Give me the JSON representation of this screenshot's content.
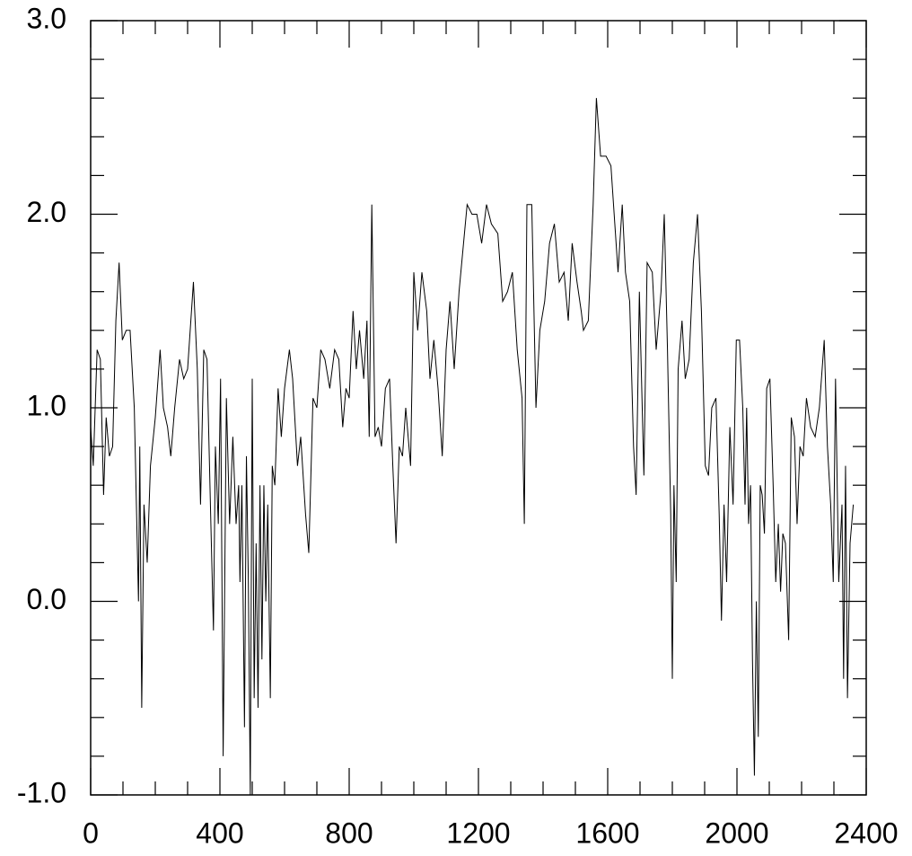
{
  "chart_data": {
    "type": "line",
    "x": [
      0,
      8,
      20,
      30,
      40,
      48,
      58,
      68,
      78,
      88,
      98,
      110,
      122,
      135,
      148,
      152,
      158,
      165,
      175,
      185,
      200,
      215,
      225,
      238,
      248,
      260,
      275,
      288,
      300,
      318,
      330,
      340,
      350,
      360,
      372,
      380,
      386,
      395,
      402,
      410,
      420,
      430,
      440,
      450,
      458,
      462,
      468,
      476,
      482,
      488,
      494,
      500,
      506,
      512,
      518,
      524,
      530,
      536,
      542,
      548,
      556,
      562,
      570,
      580,
      590,
      600,
      615,
      625,
      640,
      650,
      665,
      675,
      688,
      700,
      712,
      725,
      740,
      755,
      768,
      780,
      790,
      800,
      812,
      822,
      832,
      845,
      855,
      862,
      870,
      880,
      890,
      900,
      912,
      925,
      935,
      945,
      955,
      965,
      975,
      990,
      1000,
      1012,
      1025,
      1040,
      1050,
      1062,
      1075,
      1088,
      1100,
      1112,
      1125,
      1140,
      1165,
      1180,
      1195,
      1210,
      1225,
      1240,
      1260,
      1275,
      1290,
      1305,
      1320,
      1335,
      1342,
      1350,
      1365,
      1378,
      1390,
      1405,
      1420,
      1435,
      1450,
      1465,
      1478,
      1490,
      1505,
      1518,
      1525,
      1540,
      1555,
      1565,
      1578,
      1595,
      1610,
      1622,
      1632,
      1645,
      1655,
      1668,
      1680,
      1688,
      1698,
      1712,
      1722,
      1738,
      1750,
      1765,
      1775,
      1785,
      1795,
      1800,
      1805,
      1812,
      1818,
      1830,
      1840,
      1852,
      1865,
      1878,
      1890,
      1902,
      1912,
      1922,
      1935,
      1945,
      1952,
      1960,
      1968,
      1978,
      1988,
      1998,
      2008,
      2018,
      2025,
      2030,
      2036,
      2042,
      2048,
      2054,
      2060,
      2066,
      2072,
      2078,
      2085,
      2092,
      2102,
      2112,
      2120,
      2128,
      2135,
      2142,
      2150,
      2160,
      2168,
      2178,
      2186,
      2195,
      2205,
      2215,
      2228,
      2242,
      2255,
      2270,
      2280,
      2290,
      2298,
      2305,
      2315,
      2325,
      2330,
      2336,
      2342,
      2350,
      2360
    ],
    "values": [
      0.9,
      0.7,
      1.3,
      1.25,
      0.55,
      0.95,
      0.75,
      0.8,
      1.45,
      1.75,
      1.35,
      1.4,
      1.4,
      1.0,
      0.0,
      0.8,
      -0.55,
      0.5,
      0.2,
      0.7,
      0.95,
      1.3,
      1.0,
      0.9,
      0.75,
      1.0,
      1.25,
      1.15,
      1.2,
      1.65,
      1.2,
      0.5,
      1.3,
      1.25,
      0.4,
      -0.15,
      0.8,
      0.4,
      1.15,
      -0.8,
      1.05,
      0.4,
      0.85,
      0.4,
      0.6,
      0.1,
      0.6,
      -0.65,
      0.75,
      0.1,
      -1.0,
      1.15,
      -0.5,
      0.3,
      -0.55,
      0.6,
      -0.3,
      0.6,
      0.0,
      0.5,
      -0.5,
      0.7,
      0.6,
      1.1,
      0.85,
      1.1,
      1.3,
      1.15,
      0.7,
      0.85,
      0.45,
      0.25,
      1.05,
      1.0,
      1.3,
      1.25,
      1.1,
      1.3,
      1.25,
      0.9,
      1.1,
      1.05,
      1.5,
      1.2,
      1.4,
      1.15,
      1.45,
      0.85,
      2.05,
      0.85,
      0.9,
      0.8,
      1.1,
      1.15,
      0.7,
      0.3,
      0.8,
      0.75,
      1.0,
      0.7,
      1.7,
      1.4,
      1.7,
      1.5,
      1.15,
      1.35,
      1.1,
      0.75,
      1.3,
      1.55,
      1.2,
      1.6,
      2.05,
      2.0,
      2.0,
      1.85,
      2.05,
      1.95,
      1.9,
      1.55,
      1.6,
      1.7,
      1.3,
      1.05,
      0.4,
      2.05,
      2.05,
      1.0,
      1.4,
      1.55,
      1.85,
      1.95,
      1.65,
      1.7,
      1.45,
      1.85,
      1.65,
      1.5,
      1.4,
      1.45,
      2.05,
      2.6,
      2.3,
      2.3,
      2.25,
      1.95,
      1.7,
      2.05,
      1.7,
      1.55,
      0.8,
      0.55,
      1.6,
      0.65,
      1.75,
      1.7,
      1.3,
      1.6,
      2.0,
      1.3,
      0.45,
      -0.4,
      0.6,
      0.1,
      1.2,
      1.45,
      1.15,
      1.25,
      1.75,
      2.0,
      1.5,
      0.7,
      0.65,
      1.0,
      1.05,
      0.45,
      -0.1,
      0.5,
      0.1,
      0.9,
      0.5,
      1.35,
      1.35,
      1.0,
      0.5,
      1.0,
      0.4,
      0.6,
      -0.3,
      -0.9,
      0.0,
      -0.7,
      0.6,
      0.55,
      0.35,
      1.1,
      1.15,
      0.6,
      0.1,
      0.4,
      0.05,
      0.35,
      0.3,
      -0.2,
      0.95,
      0.85,
      0.4,
      0.8,
      0.75,
      1.05,
      0.9,
      0.85,
      1.0,
      1.35,
      0.8,
      0.5,
      0.1,
      1.15,
      0.1,
      0.5,
      -0.4,
      0.7,
      -0.5,
      0.3,
      0.5
    ],
    "color": "#000000",
    "xlim": [
      0,
      2400
    ],
    "xticks": [
      0,
      400,
      800,
      1200,
      1600,
      2000,
      2400
    ],
    "xminorticks": [
      100,
      200,
      300,
      500,
      600,
      700,
      900,
      1000,
      1100,
      1300,
      1400,
      1500,
      1700,
      1800,
      1900,
      2100,
      2200,
      2300
    ],
    "ylim": [
      -1,
      3
    ],
    "yticks": [
      {
        "value": -1,
        "label": "-1.0"
      },
      {
        "value": 0,
        "label": "0.0"
      },
      {
        "value": 1,
        "label": "1.0"
      },
      {
        "value": 2,
        "label": "2.0"
      },
      {
        "value": 3,
        "label": "3.0"
      }
    ],
    "yminorticks": [
      -0.8,
      -0.6,
      -0.4,
      -0.2,
      0.2,
      0.4,
      0.6,
      0.8,
      1.2,
      1.4,
      1.6,
      1.8,
      2.2,
      2.4,
      2.6,
      2.8
    ]
  }
}
